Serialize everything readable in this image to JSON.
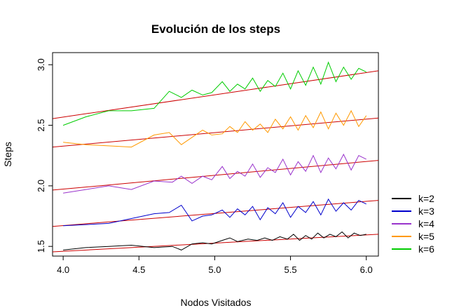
{
  "chart_data": {
    "type": "line",
    "title": "Evolución de los steps",
    "xlabel": "Nodos Visitados",
    "ylabel": "Steps",
    "xlim": [
      3.93,
      6.08
    ],
    "ylim": [
      1.42,
      3.1
    ],
    "xticks": [
      "4.0",
      "4.5",
      "5.0",
      "5.5",
      "6.0"
    ],
    "yticks": [
      "1.5",
      "2.0",
      "2.5",
      "3.0"
    ],
    "xtick_values": [
      4.0,
      4.5,
      5.0,
      5.5,
      6.0
    ],
    "ytick_values": [
      1.5,
      2.0,
      2.5,
      3.0
    ],
    "grid": false,
    "legend_position": "right",
    "trend_color": "#cc0000",
    "series": [
      {
        "name": "k=2",
        "color": "#000000",
        "x": [
          4.0,
          4.15,
          4.3,
          4.45,
          4.6,
          4.72,
          4.78,
          4.85,
          4.92,
          4.98,
          5.05,
          5.1,
          5.15,
          5.22,
          5.28,
          5.33,
          5.38,
          5.43,
          5.48,
          5.52,
          5.56,
          5.6,
          5.64,
          5.68,
          5.72,
          5.76,
          5.8,
          5.84,
          5.88,
          5.92,
          5.96,
          6.0
        ],
        "y": [
          1.47,
          1.49,
          1.5,
          1.51,
          1.49,
          1.5,
          1.47,
          1.52,
          1.53,
          1.52,
          1.55,
          1.57,
          1.54,
          1.56,
          1.55,
          1.57,
          1.55,
          1.58,
          1.56,
          1.6,
          1.55,
          1.59,
          1.56,
          1.61,
          1.57,
          1.6,
          1.58,
          1.62,
          1.57,
          1.61,
          1.59,
          1.6
        ]
      },
      {
        "name": "k=3",
        "color": "#0000cc",
        "x": [
          4.0,
          4.15,
          4.3,
          4.45,
          4.6,
          4.7,
          4.78,
          4.85,
          4.92,
          4.98,
          5.05,
          5.1,
          5.15,
          5.2,
          5.25,
          5.3,
          5.35,
          5.4,
          5.45,
          5.5,
          5.55,
          5.6,
          5.65,
          5.7,
          5.75,
          5.8,
          5.85,
          5.9,
          5.95,
          6.0
        ],
        "y": [
          1.67,
          1.68,
          1.69,
          1.73,
          1.77,
          1.78,
          1.84,
          1.71,
          1.75,
          1.76,
          1.8,
          1.74,
          1.81,
          1.76,
          1.83,
          1.72,
          1.82,
          1.77,
          1.86,
          1.74,
          1.83,
          1.78,
          1.87,
          1.76,
          1.89,
          1.79,
          1.86,
          1.8,
          1.88,
          1.85
        ]
      },
      {
        "name": "k=4",
        "color": "#9933cc",
        "x": [
          4.0,
          4.15,
          4.3,
          4.45,
          4.6,
          4.72,
          4.78,
          4.85,
          4.92,
          4.98,
          5.05,
          5.1,
          5.15,
          5.2,
          5.25,
          5.3,
          5.35,
          5.4,
          5.45,
          5.5,
          5.55,
          5.6,
          5.65,
          5.7,
          5.75,
          5.8,
          5.85,
          5.9,
          5.95,
          6.0
        ],
        "y": [
          1.94,
          1.97,
          2.0,
          1.97,
          2.04,
          2.03,
          2.08,
          2.02,
          2.08,
          2.05,
          2.16,
          2.06,
          2.12,
          2.08,
          2.18,
          2.07,
          2.15,
          2.11,
          2.22,
          2.09,
          2.2,
          2.12,
          2.25,
          2.11,
          2.23,
          2.14,
          2.26,
          2.13,
          2.25,
          2.22
        ]
      },
      {
        "name": "k=5",
        "color": "#ff9900",
        "x": [
          4.0,
          4.15,
          4.3,
          4.45,
          4.6,
          4.7,
          4.78,
          4.85,
          4.92,
          4.98,
          5.05,
          5.1,
          5.15,
          5.2,
          5.25,
          5.3,
          5.35,
          5.4,
          5.45,
          5.5,
          5.55,
          5.6,
          5.65,
          5.7,
          5.75,
          5.8,
          5.85,
          5.9,
          5.95,
          6.0
        ],
        "y": [
          2.36,
          2.34,
          2.33,
          2.32,
          2.42,
          2.44,
          2.34,
          2.4,
          2.46,
          2.42,
          2.43,
          2.49,
          2.44,
          2.53,
          2.46,
          2.51,
          2.44,
          2.55,
          2.47,
          2.57,
          2.46,
          2.58,
          2.48,
          2.61,
          2.47,
          2.6,
          2.5,
          2.62,
          2.49,
          2.58
        ]
      },
      {
        "name": "k=6",
        "color": "#00cc00",
        "x": [
          4.0,
          4.15,
          4.3,
          4.45,
          4.6,
          4.7,
          4.78,
          4.85,
          4.92,
          4.98,
          5.05,
          5.1,
          5.15,
          5.2,
          5.25,
          5.3,
          5.35,
          5.4,
          5.45,
          5.5,
          5.55,
          5.6,
          5.65,
          5.7,
          5.75,
          5.8,
          5.85,
          5.9,
          5.95,
          6.0
        ],
        "y": [
          2.5,
          2.57,
          2.62,
          2.62,
          2.64,
          2.78,
          2.73,
          2.79,
          2.75,
          2.77,
          2.86,
          2.78,
          2.84,
          2.8,
          2.89,
          2.78,
          2.87,
          2.82,
          2.93,
          2.8,
          2.95,
          2.83,
          2.98,
          2.84,
          3.02,
          2.86,
          2.98,
          2.88,
          2.97,
          2.94
        ]
      }
    ],
    "trendlines": [
      {
        "x": [
          3.93,
          6.08
        ],
        "y": [
          1.455,
          1.6
        ]
      },
      {
        "x": [
          3.93,
          6.08
        ],
        "y": [
          1.665,
          1.88
        ]
      },
      {
        "x": [
          3.93,
          6.08
        ],
        "y": [
          1.965,
          2.21
        ]
      },
      {
        "x": [
          3.93,
          6.08
        ],
        "y": [
          2.32,
          2.56
        ]
      },
      {
        "x": [
          3.93,
          6.08
        ],
        "y": [
          2.555,
          2.95
        ]
      }
    ]
  }
}
